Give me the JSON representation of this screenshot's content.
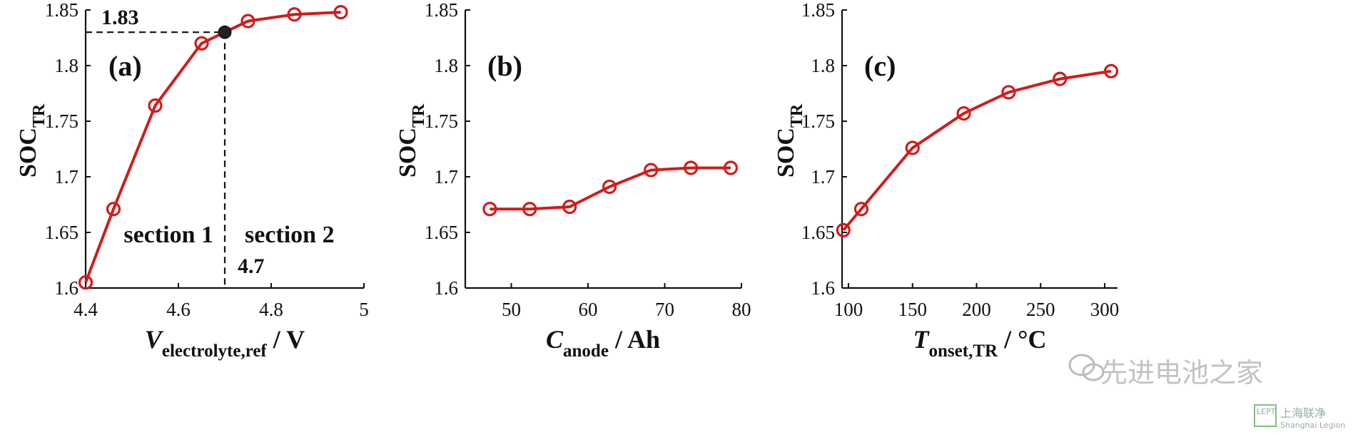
{
  "chart_data": [
    {
      "type": "line",
      "panel_label": "(a)",
      "ylabel": {
        "main": "SOC",
        "sub": "TR"
      },
      "xlabel": {
        "main": "V",
        "sub": "electrolyte,ref",
        "unit": "/ V"
      },
      "xlim": [
        4.4,
        5.0
      ],
      "ylim": [
        1.6,
        1.85
      ],
      "xticks": [
        "4.4",
        "4.6",
        "4.8",
        "5"
      ],
      "xtick_values": [
        4.4,
        4.6,
        4.8,
        5.0
      ],
      "yticks": [
        "1.6",
        "1.65",
        "1.7",
        "1.75",
        "1.8",
        "1.85"
      ],
      "ytick_values": [
        1.6,
        1.65,
        1.7,
        1.75,
        1.8,
        1.85
      ],
      "x": [
        4.4,
        4.46,
        4.55,
        4.65,
        4.75,
        4.85,
        4.95
      ],
      "y": [
        1.605,
        1.671,
        1.764,
        1.82,
        1.84,
        1.846,
        1.848
      ],
      "highlight_point": {
        "x": 4.7,
        "y": 1.83
      },
      "annotations": {
        "y_value": "1.83",
        "x_value": "4.7",
        "left_region": "section 1",
        "right_region": "section 2"
      },
      "color": "#d01c1c"
    },
    {
      "type": "line",
      "panel_label": "(b)",
      "ylabel": {
        "main": "SOC",
        "sub": "TR"
      },
      "xlabel": {
        "main": "C",
        "sub": "anode",
        "unit": "/ Ah"
      },
      "xlim": [
        44,
        80
      ],
      "ylim": [
        1.6,
        1.85
      ],
      "xticks": [
        "50",
        "60",
        "70",
        "80"
      ],
      "xtick_values": [
        50,
        60,
        70,
        80
      ],
      "yticks": [
        "1.6",
        "1.65",
        "1.7",
        "1.75",
        "1.8",
        "1.85"
      ],
      "ytick_values": [
        1.6,
        1.65,
        1.7,
        1.75,
        1.8,
        1.85
      ],
      "x": [
        47.2,
        52.4,
        57.6,
        62.8,
        68.2,
        73.4,
        78.6
      ],
      "y": [
        1.671,
        1.671,
        1.673,
        1.691,
        1.706,
        1.708,
        1.708
      ],
      "color": "#d01c1c"
    },
    {
      "type": "line",
      "panel_label": "(c)",
      "ylabel": {
        "main": "SOC",
        "sub": "TR"
      },
      "xlabel": {
        "main": "T",
        "sub": "onset,TR",
        "unit": "/ °C"
      },
      "xlim": [
        95,
        310
      ],
      "ylim": [
        1.6,
        1.85
      ],
      "xticks": [
        "100",
        "150",
        "200",
        "250",
        "300"
      ],
      "xtick_values": [
        100,
        150,
        200,
        250,
        300
      ],
      "yticks": [
        "1.6",
        "1.65",
        "1.7",
        "1.75",
        "1.8",
        "1.85"
      ],
      "ytick_values": [
        1.6,
        1.65,
        1.7,
        1.75,
        1.8,
        1.85
      ],
      "x": [
        96,
        110,
        150,
        190,
        225,
        265,
        305
      ],
      "y": [
        1.652,
        1.671,
        1.726,
        1.757,
        1.776,
        1.788,
        1.795
      ],
      "color": "#d01c1c"
    }
  ],
  "watermark": {
    "main": "先进电池之家",
    "badge": "LEPT",
    "cn": "上海联净",
    "en": "Shanghai Legion"
  }
}
